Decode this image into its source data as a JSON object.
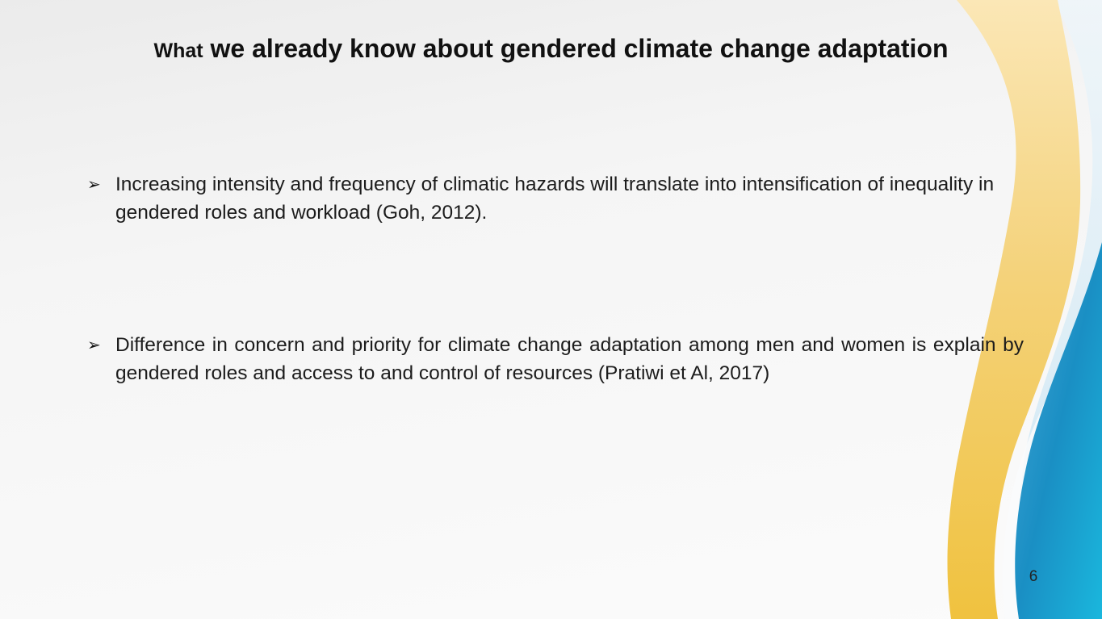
{
  "title": {
    "lead": "What",
    "rest": " we already know about gendered climate change adaptation"
  },
  "bullet_marker": "➢",
  "bullets": [
    {
      "text": "Increasing intensity and frequency  of  climatic hazards will translate into intensification of inequality in gendered roles and workload (Goh, 2012)."
    },
    {
      "text": "Difference in concern and priority for climate change adaptation among men and women is  explain by gendered roles and access to and control of resources  (Pratiwi et  Al, 2017)"
    }
  ],
  "slide_number": "6",
  "colors": {
    "wave_gold": "#f4cf63",
    "wave_light_blue": "#cde6f3",
    "wave_blue": "#1a92c6",
    "wave_cyan": "#1ab0d8",
    "text": "#1c1c1c"
  }
}
